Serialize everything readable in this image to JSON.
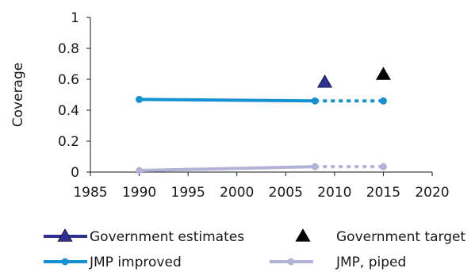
{
  "chart_data": {
    "type": "line",
    "ylabel": "Coverage",
    "xlabel": "",
    "xlim": [
      1985,
      2020
    ],
    "ylim": [
      0,
      1
    ],
    "x_ticks": [
      "1985",
      "1990",
      "1995",
      "2000",
      "2005",
      "2010",
      "2015",
      "2020"
    ],
    "y_ticks": [
      "0",
      "0.2",
      "0.4",
      "0.6",
      "0.8",
      "1"
    ],
    "grid": false,
    "legend_position": "bottom",
    "series": [
      {
        "name": "Government estimates",
        "kind": "marker",
        "marker": "triangle",
        "color": "#2e3192",
        "points": [
          {
            "x": 2009,
            "y": 0.58
          }
        ]
      },
      {
        "name": "Government target",
        "kind": "marker",
        "marker": "triangle",
        "color": "#000000",
        "points": [
          {
            "x": 2015,
            "y": 0.63
          }
        ]
      },
      {
        "name": "JMP improved",
        "kind": "line",
        "color": "#1590d2",
        "points": [
          {
            "x": 1990,
            "y": 0.47
          },
          {
            "x": 2008,
            "y": 0.46
          }
        ],
        "projection": [
          {
            "x": 2008,
            "y": 0.46
          },
          {
            "x": 2015,
            "y": 0.46
          }
        ]
      },
      {
        "name": "JMP, piped",
        "kind": "line",
        "color": "#b3b3d9",
        "points": [
          {
            "x": 1990,
            "y": 0.01
          },
          {
            "x": 2008,
            "y": 0.035
          }
        ],
        "projection": [
          {
            "x": 2008,
            "y": 0.035
          },
          {
            "x": 2015,
            "y": 0.035
          }
        ]
      }
    ]
  }
}
